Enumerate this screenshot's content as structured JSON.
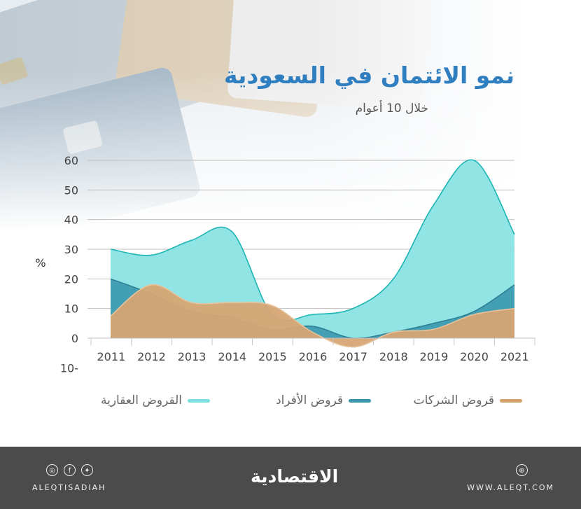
{
  "header": {
    "title": "نمو الائتمان في السعودية",
    "subtitle": "خلال 10 أعوام"
  },
  "chart_data": {
    "type": "area",
    "title": "نمو الائتمان في السعودية",
    "subtitle": "خلال 10 أعوام",
    "ylabel": "%",
    "ylim": [
      -10,
      60
    ],
    "yticks": [
      "60",
      "50",
      "40",
      "30",
      "20",
      "10",
      "0",
      "10-"
    ],
    "grid": true,
    "legend_position": "bottom",
    "categories": [
      "2011",
      "2012",
      "2013",
      "2014",
      "2015",
      "2016",
      "2017",
      "2018",
      "2019",
      "2020",
      "2021"
    ],
    "series": [
      {
        "name": "القروض العقارية",
        "color": "#7ee0e0",
        "values": [
          30,
          28,
          33,
          36,
          8,
          8,
          10,
          20,
          45,
          60,
          35
        ]
      },
      {
        "name": "قروض الأفراد",
        "color": "#3a95ad",
        "values": [
          20,
          15,
          9,
          7,
          3,
          4,
          0,
          2,
          5,
          9,
          18
        ]
      },
      {
        "name": "قروض الشركات",
        "color": "#d4a06a",
        "values": [
          7.5,
          18,
          12,
          12,
          11,
          2,
          -3,
          2,
          3,
          8,
          10
        ]
      }
    ]
  },
  "footer": {
    "brand": "الاقتصادية",
    "handle": "ALEQTISADIAH",
    "site": "WWW.ALEQT.COM",
    "social_icons": [
      "instagram-icon",
      "facebook-icon",
      "twitter-icon"
    ],
    "site_icon": "globe-icon"
  },
  "colors": {
    "title": "#2f7fc0",
    "footer": "#4b4b4b"
  }
}
